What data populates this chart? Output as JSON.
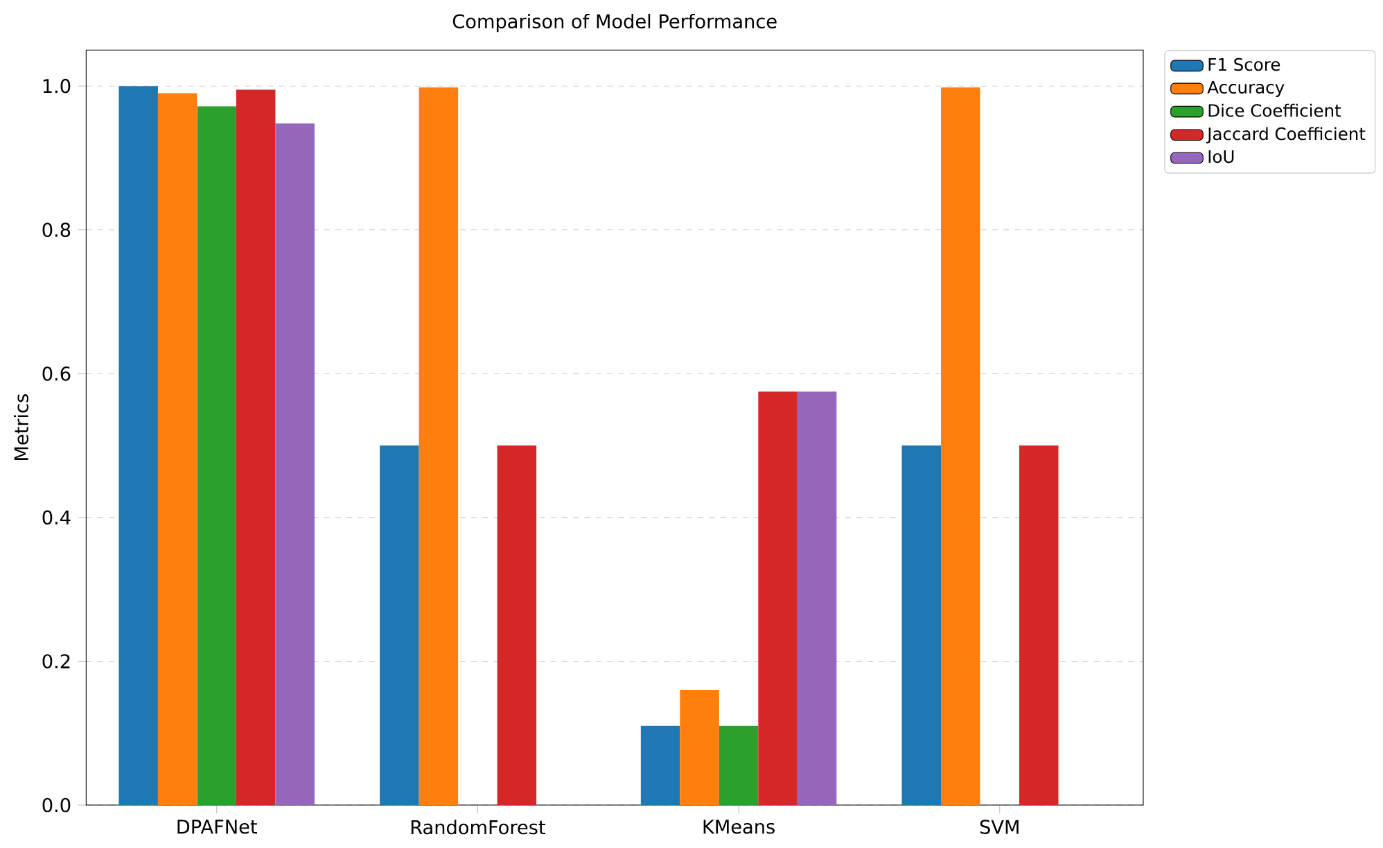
{
  "chart_data": {
    "type": "bar",
    "title": "Comparison of Model Performance",
    "ylabel": "Metrics",
    "categories": [
      "DPAFNet",
      "RandomForest",
      "KMeans",
      "SVM"
    ],
    "series": [
      {
        "name": "F1 Score",
        "color": "#1f77b4",
        "values": [
          1.0,
          0.5,
          0.11,
          0.5
        ]
      },
      {
        "name": "Accuracy",
        "color": "#ff7f0e",
        "values": [
          0.99,
          0.998,
          0.16,
          0.998
        ]
      },
      {
        "name": "Dice Coefficient",
        "color": "#2ca02c",
        "values": [
          0.972,
          0,
          0.11,
          0
        ]
      },
      {
        "name": "Jaccard Coefficient",
        "color": "#d62728",
        "values": [
          0.995,
          0.5,
          0.575,
          0.5
        ]
      },
      {
        "name": "IoU",
        "color": "#9467bd",
        "values": [
          0.948,
          0,
          0.575,
          0
        ]
      }
    ],
    "ylim": [
      0,
      1.05
    ],
    "yticks": [
      {
        "value": 0,
        "label": "0.0"
      },
      {
        "value": 0.2,
        "label": "0.2"
      },
      {
        "value": 0.4,
        "label": "0.4"
      },
      {
        "value": 0.6,
        "label": "0.6"
      },
      {
        "value": 0.8,
        "label": "0.8"
      },
      {
        "value": 1.0,
        "label": "1.0"
      }
    ],
    "grid": "y",
    "legend": "top right"
  }
}
